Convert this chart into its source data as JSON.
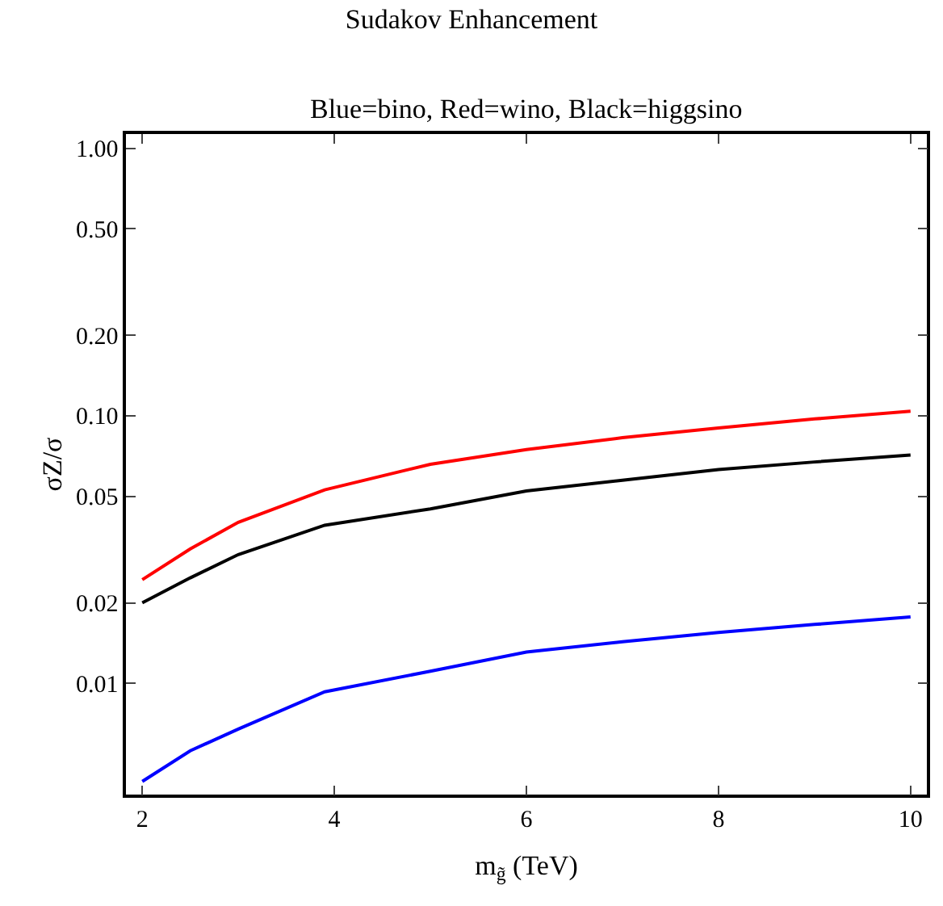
{
  "chart_data": {
    "type": "line",
    "title": "Sudakov Enhancement",
    "subtitle": "Blue=bino, Red=wino, Black=higgsino",
    "xlabel": "m$_{g̃}$ (TeV)",
    "ylabel": "σZ/σ",
    "x": [
      2,
      2.5,
      3,
      3.9,
      5,
      6,
      7,
      8,
      9,
      10
    ],
    "series": [
      {
        "color": "#ff0000",
        "values": [
          0.0244,
          0.0318,
          0.04,
          0.0529,
          0.0659,
          0.0748,
          0.0828,
          0.09,
          0.0973,
          0.104
        ]
      },
      {
        "color": "#000000",
        "values": [
          0.02,
          0.0248,
          0.0303,
          0.039,
          0.0449,
          0.0524,
          0.0574,
          0.063,
          0.0672,
          0.0713
        ]
      },
      {
        "color": "#0000ff",
        "values": [
          0.0043,
          0.0056,
          0.00675,
          0.0093,
          0.0111,
          0.0131,
          0.0143,
          0.0155,
          0.0166,
          0.0177
        ]
      }
    ],
    "log": "y",
    "xlim": [
      1.83,
      10.17
    ],
    "ylim": [
      0.00384,
      1.13
    ],
    "xticks": [
      2,
      4,
      6,
      8,
      10
    ],
    "yticks": [
      {
        "value": 0.01,
        "label": "0.01"
      },
      {
        "value": 0.02,
        "label": "0.02"
      },
      {
        "value": 0.05,
        "label": "0.05"
      },
      {
        "value": 0.1,
        "label": "0.10"
      },
      {
        "value": 0.2,
        "label": "0.20"
      },
      {
        "value": 0.5,
        "label": "0.50"
      },
      {
        "value": 1,
        "label": "1.00"
      }
    ],
    "marker": "none",
    "line_style": "solid"
  }
}
